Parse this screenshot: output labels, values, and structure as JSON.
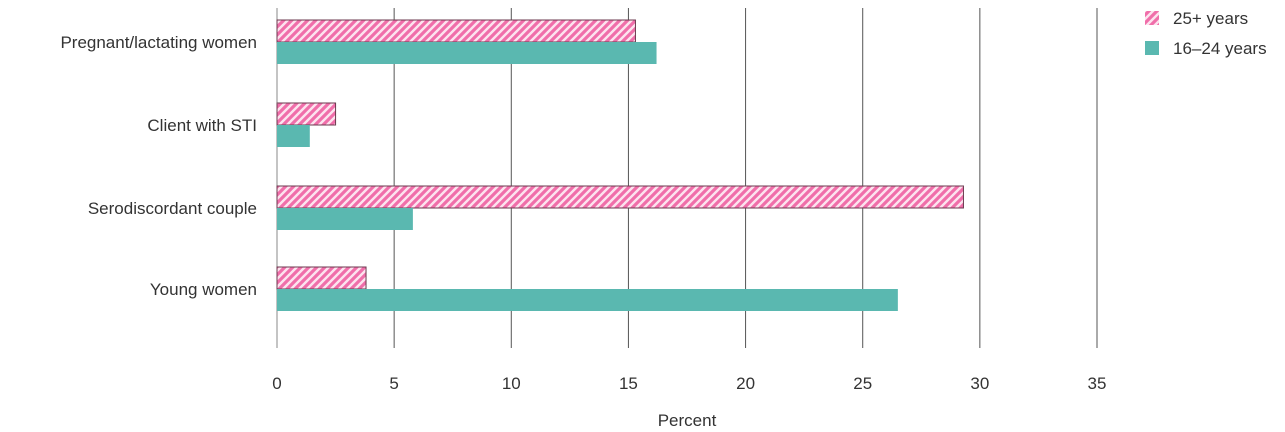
{
  "chart_data": {
    "type": "bar",
    "orientation": "horizontal",
    "categories": [
      "Pregnant/lactating women",
      "Client with STI",
      "Serodiscordant couple",
      "Young women"
    ],
    "series": [
      {
        "name": "25+ years",
        "values": [
          15.3,
          2.5,
          29.3,
          3.8
        ],
        "color": "#f06eaa",
        "pattern": "diagonal-hatch"
      },
      {
        "name": "16–24 years",
        "values": [
          16.2,
          1.4,
          5.8,
          26.5
        ],
        "color": "#5ab8b0",
        "pattern": "solid"
      }
    ],
    "x_ticks": [
      "0",
      "5",
      "10",
      "15",
      "20",
      "25",
      "30",
      "35"
    ],
    "xlim": [
      0,
      35
    ],
    "xlabel": "Percent",
    "title": "",
    "grid": "vertical",
    "legend_position": "top-right"
  }
}
